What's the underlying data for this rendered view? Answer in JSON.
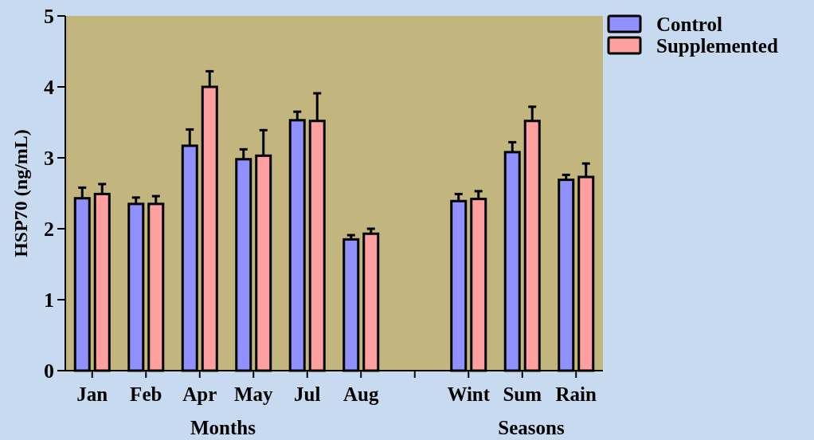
{
  "chart_data": {
    "type": "bar",
    "ylabel": "HSP70 (ng/mL)",
    "categories": [
      "Jan",
      "Feb",
      "Apr",
      "May",
      "Jul",
      "Aug",
      null,
      "Wint",
      "Sum",
      "Rain"
    ],
    "series": [
      {
        "name": "Control",
        "color": "#9090ff",
        "values": [
          2.43,
          2.35,
          3.17,
          2.98,
          3.53,
          1.85,
          null,
          2.39,
          3.08,
          2.69
        ],
        "errors": [
          [
            2.43,
            2.58
          ],
          [
            2.35,
            2.44
          ],
          [
            3.17,
            3.4
          ],
          [
            2.98,
            3.12
          ],
          [
            3.53,
            3.65
          ],
          [
            1.85,
            1.91
          ],
          null,
          [
            2.39,
            2.49
          ],
          [
            3.08,
            3.22
          ],
          [
            2.69,
            2.76
          ]
        ]
      },
      {
        "name": "Supplemented",
        "color": "#ffa0a0",
        "values": [
          2.49,
          2.35,
          4.0,
          3.03,
          3.52,
          1.93,
          null,
          2.42,
          3.52,
          2.73
        ],
        "errors": [
          [
            2.49,
            2.63
          ],
          [
            2.35,
            2.46
          ],
          [
            4.0,
            4.22
          ],
          [
            3.03,
            3.39
          ],
          [
            3.52,
            3.91
          ],
          [
            1.93,
            2.0
          ],
          null,
          [
            2.42,
            2.53
          ],
          [
            3.52,
            3.72
          ],
          [
            2.73,
            2.92
          ]
        ]
      }
    ],
    "ylim": [
      0,
      5
    ],
    "yticks": [
      0,
      1,
      2,
      3,
      4,
      5
    ],
    "legend": "top right",
    "annotations": [
      "Months",
      "Seasons"
    ]
  }
}
